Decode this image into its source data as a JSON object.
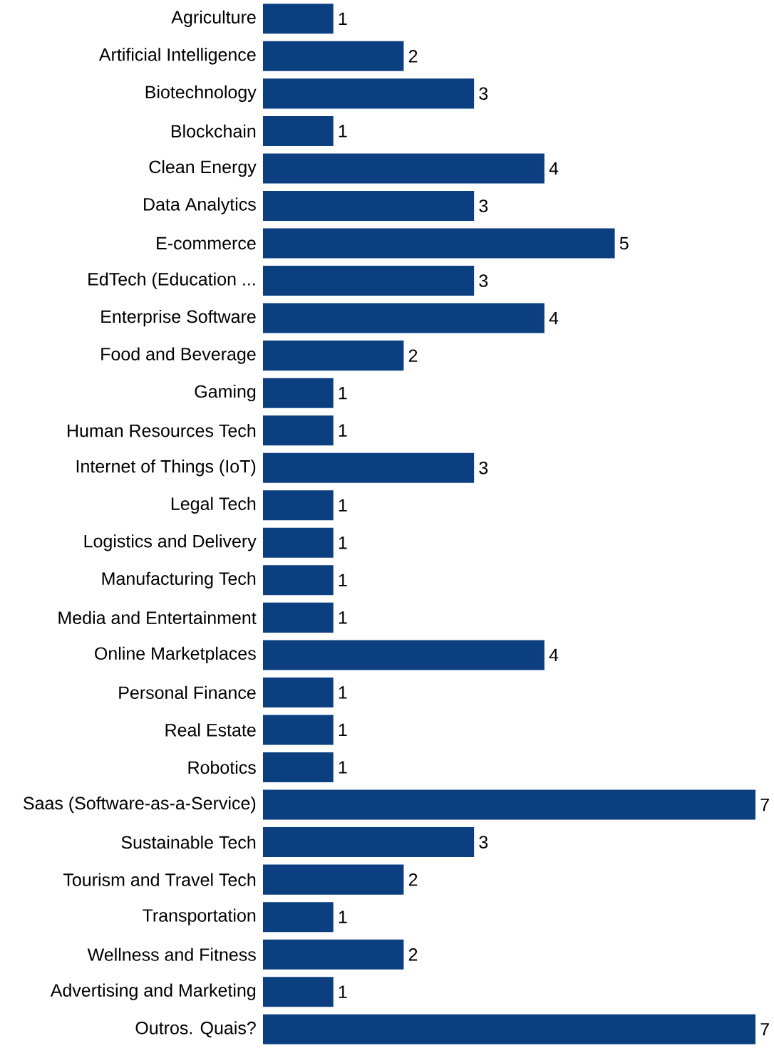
{
  "chart_data": {
    "type": "bar",
    "orientation": "horizontal",
    "color": "#0b3f80",
    "data_labels": true,
    "categories": [
      "Agriculture",
      "Artificial Intelligence",
      "Biotechnology",
      "Blockchain",
      "Clean Energy",
      "Data Analytics",
      "E-commerce",
      "EdTech (Education ...",
      "Enterprise Software",
      "Food and Beverage",
      "Gaming",
      "Human Resources Tech",
      "Internet of Things (IoT)",
      "Legal Tech",
      "Logistics and Delivery",
      "Manufacturing Tech",
      "Media and Entertainment",
      "Online Marketplaces",
      "Personal Finance",
      "Real Estate",
      "Robotics",
      "Saas (Software-as-a-Service)",
      "Sustainable Tech",
      "Tourism and Travel Tech",
      "Transportation",
      "Wellness and Fitness",
      "Advertising and Marketing",
      "Outros. Quais?"
    ],
    "values": [
      1,
      2,
      3,
      1,
      4,
      3,
      5,
      3,
      4,
      2,
      1,
      1,
      3,
      1,
      1,
      1,
      1,
      4,
      1,
      1,
      1,
      7,
      3,
      2,
      1,
      2,
      1,
      7
    ]
  }
}
